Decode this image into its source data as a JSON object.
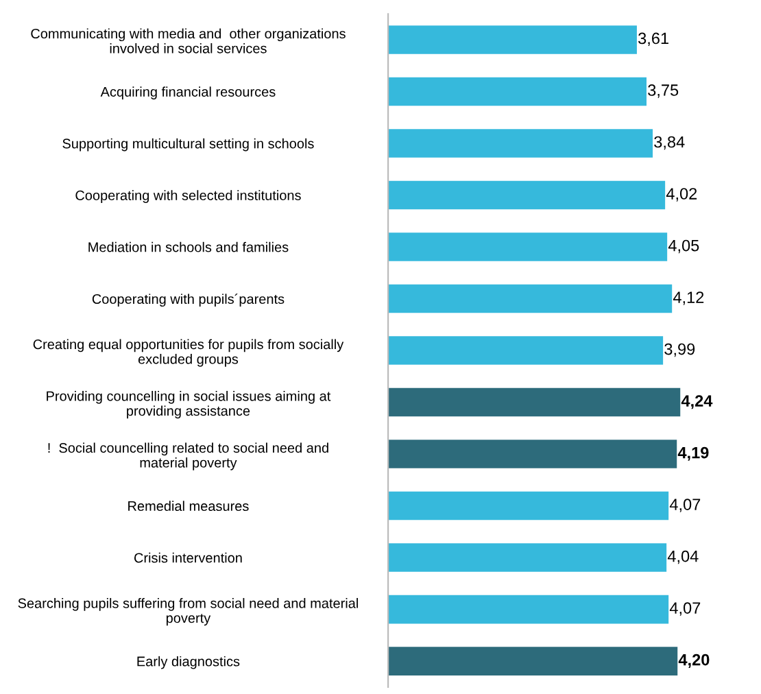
{
  "chart_data": {
    "type": "bar",
    "orientation": "horizontal",
    "tick_labels": "y",
    "grid": false,
    "legend": false,
    "categories": [
      "Communicating with media and  other organizations\ninvolved in social services",
      "Acquiring financial resources",
      "Supporting multicultural setting in schools",
      "Cooperating with selected institutions",
      "Mediation in schools and families",
      "Cooperating with pupils´parents",
      "Creating equal opportunities for pupils from socially\nexcluded groups",
      "Providing councelling in social issues aiming at\nproviding assistance",
      "!  Social councelling related to social need and\nmaterial poverty",
      "Remedial measures",
      "Crisis intervention",
      "Searching pupils suffering from social need and material\npoverty",
      "Early diagnostics"
    ],
    "values": [
      3.61,
      3.75,
      3.84,
      4.02,
      4.05,
      4.12,
      3.99,
      4.24,
      4.19,
      4.07,
      4.04,
      4.07,
      4.2
    ],
    "value_labels": [
      "3,61",
      "3,75",
      "3,84",
      "4,02",
      "4,05",
      "4,12",
      "3,99",
      "4,24",
      "4,19",
      "4,07",
      "4,04",
      "4,07",
      "4,20"
    ],
    "colors": [
      "#36b9dc",
      "#36b9dc",
      "#36b9dc",
      "#36b9dc",
      "#36b9dc",
      "#36b9dc",
      "#36b9dc",
      "#2d6b7b",
      "#2d6b7b",
      "#36b9dc",
      "#36b9dc",
      "#36b9dc",
      "#2d6b7b"
    ]
  }
}
